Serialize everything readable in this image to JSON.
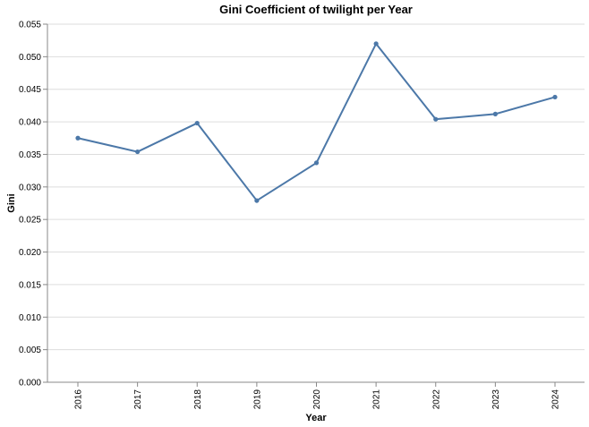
{
  "chart_data": {
    "type": "line",
    "title": "Gini Coefficient of twilight per Year",
    "xlabel": "Year",
    "ylabel": "Gini",
    "categories": [
      "2016",
      "2017",
      "2018",
      "2019",
      "2020",
      "2021",
      "2022",
      "2023",
      "2024"
    ],
    "values": [
      0.0375,
      0.0354,
      0.0398,
      0.0279,
      0.0337,
      0.052,
      0.0404,
      0.0412,
      0.0438
    ],
    "ylim": [
      0,
      0.055
    ],
    "yticks": [
      "0.000",
      "0.005",
      "0.010",
      "0.015",
      "0.020",
      "0.025",
      "0.030",
      "0.035",
      "0.040",
      "0.045",
      "0.050",
      "0.055"
    ],
    "grid": true,
    "legend": "none",
    "color": "#4c78a8"
  }
}
